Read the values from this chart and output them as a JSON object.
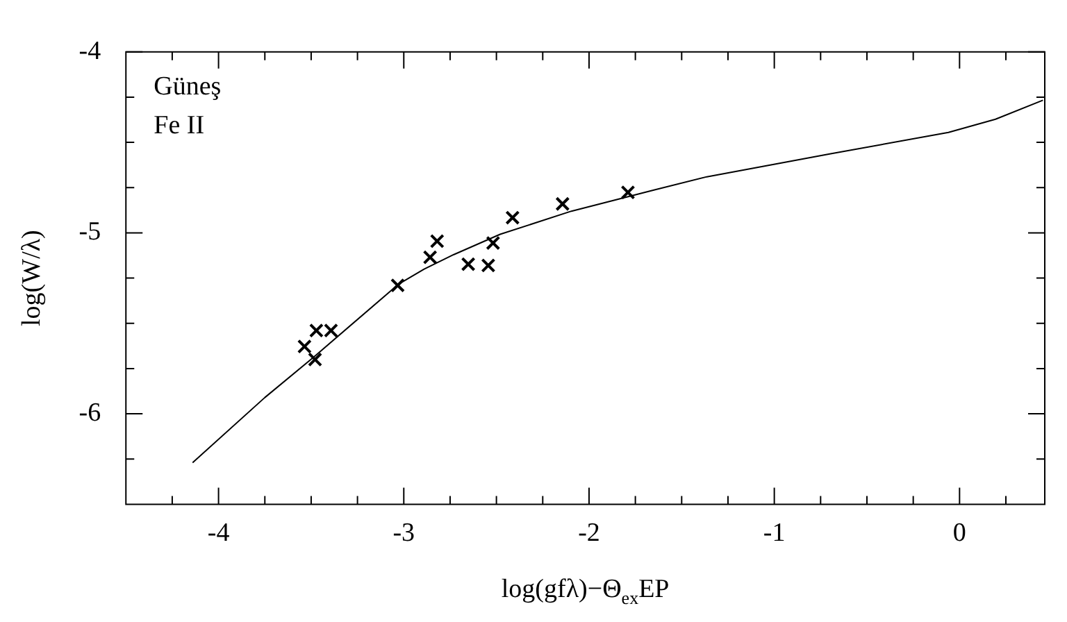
{
  "chart_data": {
    "type": "scatter",
    "xlabel": "log(gfλ)−Θ$_{ex}$EP",
    "ylabel": "log(W/λ)",
    "annotations": [
      "Güneş",
      "Fe II"
    ],
    "xlim": [
      -4.5,
      0.46
    ],
    "ylim": [
      -6.5,
      -4
    ],
    "xticks": [
      {
        "value": -4.25,
        "label": null
      },
      -4,
      {
        "value": -3.75,
        "label": null
      },
      {
        "value": -3.5,
        "label": null
      },
      {
        "value": -3.25,
        "label": null
      },
      -3,
      {
        "value": -2.75,
        "label": null
      },
      {
        "value": -2.5,
        "label": null
      },
      {
        "value": -2.25,
        "label": null
      },
      -2,
      {
        "value": -1.75,
        "label": null
      },
      {
        "value": -1.5,
        "label": null
      },
      {
        "value": -1.25,
        "label": null
      },
      -1,
      {
        "value": -0.75,
        "label": null
      },
      {
        "value": -0.5,
        "label": null
      },
      {
        "value": -0.25,
        "label": null
      },
      0,
      {
        "value": 0.25,
        "label": null
      }
    ],
    "yticks": [
      {
        "value": -6.25,
        "label": null
      },
      -6,
      {
        "value": -5.75,
        "label": null
      },
      {
        "value": -5.5,
        "label": null
      },
      {
        "value": -5.25,
        "label": null
      },
      -5,
      {
        "value": -4.75,
        "label": null
      },
      {
        "value": -4.5,
        "label": null
      },
      {
        "value": -4.25,
        "label": null
      },
      -4
    ],
    "grid": false,
    "legend": false,
    "series": [
      {
        "type": "line",
        "color": "#000000",
        "marker": "none",
        "line_style": "solid",
        "x": [
          -4.14,
          -3.75,
          -3.49,
          -3.03,
          -2.89,
          -2.73,
          -2.48,
          -2.095,
          -1.65,
          -1.364,
          -0.696,
          -0.06,
          0.194,
          0.45
        ],
        "values": [
          -6.27,
          -5.91,
          -5.69,
          -5.285,
          -5.2,
          -5.12,
          -5.008,
          -4.88,
          -4.763,
          -4.69,
          -4.563,
          -4.445,
          -4.372,
          -4.267
        ]
      },
      {
        "type": "scatter",
        "color": "#000000",
        "marker": "cross",
        "x": [
          -3.536,
          -3.479,
          -3.472,
          -3.393,
          -3.033,
          -2.858,
          -2.82,
          -2.652,
          -2.544,
          -2.518,
          -2.413,
          -2.143,
          -1.79
        ],
        "values": [
          -5.628,
          -5.7,
          -5.54,
          -5.54,
          -5.29,
          -5.135,
          -5.046,
          -5.173,
          -5.18,
          -5.056,
          -4.916,
          -4.84,
          -4.776
        ]
      }
    ]
  }
}
